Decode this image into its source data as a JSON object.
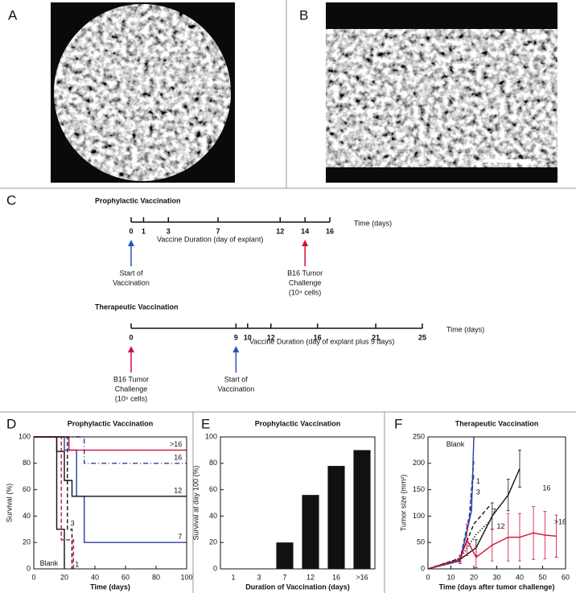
{
  "panel_labels": [
    "A",
    "B",
    "C",
    "D",
    "E",
    "F"
  ],
  "timelines": [
    {
      "title": "Prophylactic Vaccination",
      "unit": "Time (days)",
      "caption": "Vaccine Duration (day of explant)",
      "ticks": [
        0,
        1,
        3,
        7,
        12,
        14,
        16
      ],
      "markers": [
        {
          "at": 0,
          "color": "#2a52be",
          "text": [
            "Start of",
            "Vaccination"
          ]
        },
        {
          "at": 14,
          "color": "#d0103a",
          "text": [
            "B16 Tumor",
            "Challenge",
            "(10⁴ cells)"
          ]
        }
      ]
    },
    {
      "title": "Therapeutic Vaccination",
      "unit": "Time (days)",
      "caption": "Vaccine Duration (day of explant plus 9 days)",
      "ticks": [
        0,
        9,
        10,
        12,
        16,
        21,
        25
      ],
      "markers": [
        {
          "at": 0,
          "color": "#d0103a",
          "text": [
            "B16 Tumor",
            "Challenge",
            "(10⁵ cells)"
          ]
        },
        {
          "at": 9,
          "color": "#2a52be",
          "text": [
            "Start of",
            "Vaccination"
          ]
        }
      ]
    }
  ],
  "chart_data": [
    {
      "type": "line",
      "title": "Prophylactic Vaccination",
      "xlabel": "Time (days)",
      "ylabel": "Survival (%)",
      "xlim": [
        0,
        100
      ],
      "ylim": [
        0,
        100
      ],
      "xticks": [
        0,
        20,
        40,
        60,
        80,
        100
      ],
      "yticks": [
        0,
        20,
        40,
        60,
        80,
        100
      ],
      "series": [
        {
          "name": "Blank",
          "color": "#111111",
          "dash": "solid",
          "x": [
            0,
            15,
            15,
            20,
            20
          ],
          "values": [
            100,
            100,
            30,
            30,
            0
          ]
        },
        {
          "name": "1",
          "color": "#d0103a",
          "dash": "dashed",
          "x": [
            0,
            18,
            18,
            26,
            26
          ],
          "values": [
            100,
            100,
            22,
            22,
            0
          ]
        },
        {
          "name": "3",
          "color": "#111111",
          "dash": "dashed",
          "x": [
            0,
            22,
            22,
            25,
            25
          ],
          "values": [
            100,
            100,
            30,
            30,
            0
          ]
        },
        {
          "name": "7",
          "color": "#2a3fa0",
          "dash": "solid",
          "x": [
            0,
            20,
            20,
            28,
            28,
            33,
            33,
            100
          ],
          "values": [
            100,
            100,
            90,
            90,
            55,
            55,
            20,
            20
          ]
        },
        {
          "name": "12",
          "color": "#111111",
          "dash": "solid",
          "x": [
            0,
            15,
            15,
            20,
            20,
            25,
            25,
            100
          ],
          "values": [
            100,
            100,
            89,
            89,
            67,
            67,
            55,
            55
          ]
        },
        {
          "name": "16",
          "color": "#2a3fa0",
          "dash": "dashdot",
          "x": [
            0,
            33,
            33,
            100
          ],
          "values": [
            100,
            100,
            80,
            80
          ]
        },
        {
          "name": ">16",
          "color": "#d0103a",
          "dash": "solid",
          "x": [
            0,
            23,
            23,
            100
          ],
          "values": [
            100,
            100,
            90,
            90
          ]
        }
      ]
    },
    {
      "type": "bar",
      "title": "Prophylactic Vaccination",
      "xlabel": "Duration of Vaccination (days)",
      "ylabel": "Survival at day 100 (%)",
      "color": "#111111",
      "categories": [
        "1",
        "3",
        "7",
        "12",
        "16",
        ">16"
      ],
      "values": [
        0,
        0,
        20,
        56,
        78,
        90
      ],
      "ylim": [
        0,
        100
      ],
      "yticks": [
        0,
        20,
        40,
        60,
        80,
        100
      ]
    },
    {
      "type": "line",
      "title": "Therapeutic Vaccination",
      "xlabel": "Time (days after tumor challenge)",
      "ylabel": "Tumor size (mm²)",
      "xlim": [
        0,
        60
      ],
      "ylim": [
        0,
        250
      ],
      "xticks": [
        0,
        10,
        20,
        30,
        40,
        50,
        60
      ],
      "yticks": [
        0,
        50,
        100,
        150,
        200,
        250
      ],
      "series": [
        {
          "name": "Blank",
          "color": "#2a3fa0",
          "dash": "solid",
          "x": [
            0,
            14,
            19,
            20
          ],
          "values": [
            0,
            15,
            110,
            250
          ]
        },
        {
          "name": "1",
          "color": "#2a3fa0",
          "dash": "dashed",
          "x": [
            0,
            14,
            18,
            20
          ],
          "values": [
            0,
            18,
            100,
            205
          ]
        },
        {
          "name": "3",
          "color": "#2a3fa0",
          "dash": "dashdot",
          "x": [
            0,
            14,
            18,
            20
          ],
          "values": [
            0,
            16,
            90,
            180
          ]
        },
        {
          "name": "7",
          "color": "#111111",
          "dash": "dashed",
          "x": [
            0,
            14,
            20,
            27
          ],
          "values": [
            0,
            20,
            85,
            120
          ]
        },
        {
          "name": "12",
          "color": "#111111",
          "dash": "dotted",
          "x": [
            0,
            14,
            21,
            28
          ],
          "values": [
            0,
            20,
            65,
            95
          ]
        },
        {
          "name": "16",
          "color": "#111111",
          "dash": "solid",
          "x": [
            0,
            14,
            21,
            28,
            35,
            40
          ],
          "values": [
            0,
            18,
            40,
            100,
            140,
            190
          ],
          "errors": [
            null,
            5,
            15,
            25,
            30,
            35
          ]
        },
        {
          "name": ">16",
          "color": "#d0103a",
          "dash": "solid",
          "x": [
            0,
            14,
            17,
            21,
            28,
            35,
            40,
            46,
            51,
            56
          ],
          "values": [
            0,
            18,
            55,
            22,
            45,
            60,
            60,
            68,
            64,
            62
          ],
          "errors": [
            null,
            8,
            30,
            20,
            30,
            45,
            45,
            50,
            45,
            40
          ]
        }
      ]
    }
  ]
}
